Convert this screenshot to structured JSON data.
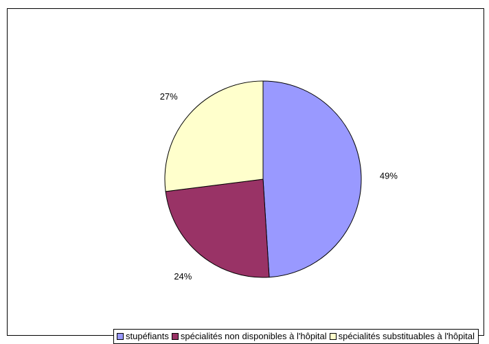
{
  "chart_data": {
    "type": "pie",
    "title": "",
    "slices": [
      {
        "label": "stupéfiants",
        "value": 49,
        "display": "49%",
        "color": "#9999FF"
      },
      {
        "label": "spécialités non disponibles à l'hôpital",
        "value": 24,
        "display": "24%",
        "color": "#993366"
      },
      {
        "label": "spécialités substituables à l'hôpital",
        "value": 27,
        "display": "27%",
        "color": "#FFFFCC"
      }
    ],
    "start": "12 o'clock",
    "direction": "clockwise",
    "legend_position": "bottom"
  }
}
